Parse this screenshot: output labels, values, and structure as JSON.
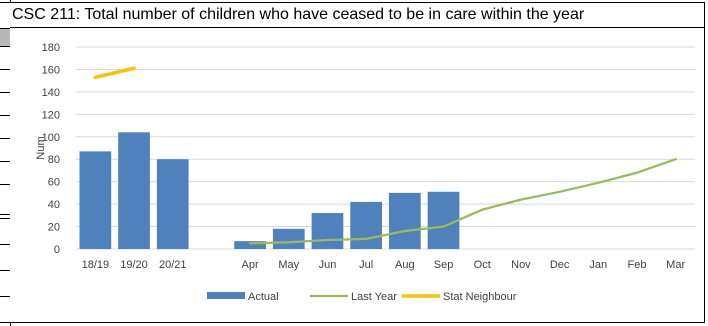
{
  "header": {
    "title": "CSC 211: Total number of children who have ceased to be in care within the year"
  },
  "colors": {
    "actual": "#4f81bd",
    "last_year": "#9bbb59",
    "stat_neighbour": "#ffc000",
    "grid": "#d9d9d9"
  },
  "chart_data": {
    "type": "bar",
    "title": "CSC 211: Total number of children who have ceased to be in care within the year",
    "xlabel": "",
    "ylabel": "Num",
    "ylim": [
      0,
      180
    ],
    "yticks": [
      0,
      20,
      40,
      60,
      80,
      100,
      120,
      140,
      160,
      180
    ],
    "grid": true,
    "legend_position": "bottom",
    "categories": [
      "18/19",
      "19/20",
      "20/21",
      "",
      "Apr",
      "May",
      "Jun",
      "Jul",
      "Aug",
      "Sep",
      "Oct",
      "Nov",
      "Dec",
      "Jan",
      "Feb",
      "Mar"
    ],
    "series": [
      {
        "name": "Actual",
        "type": "bar",
        "values": [
          87,
          104,
          80,
          null,
          7,
          18,
          32,
          42,
          50,
          51,
          null,
          null,
          null,
          null,
          null,
          null
        ]
      },
      {
        "name": "Last Year",
        "type": "line",
        "values": [
          null,
          null,
          null,
          null,
          5,
          6,
          8,
          9,
          16,
          20,
          35,
          44,
          51,
          59,
          68,
          80
        ]
      },
      {
        "name": "Stat Neighbour",
        "type": "line",
        "values": [
          153,
          161,
          null,
          null,
          null,
          null,
          null,
          null,
          null,
          null,
          null,
          null,
          null,
          null,
          null,
          null
        ]
      }
    ]
  }
}
